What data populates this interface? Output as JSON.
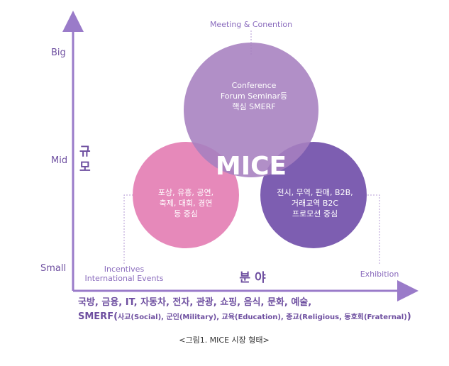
{
  "colors": {
    "axis": "#9a7bc9",
    "text_purple": "#6e4fa0",
    "circle_top": "#a67fbf",
    "circle_left": "#e47fb4",
    "circle_right": "#6f4ca8"
  },
  "y_axis": {
    "ticks": [
      "Big",
      "Mid",
      "Small"
    ],
    "title_line1": "규",
    "title_line2": "모"
  },
  "x_axis": {
    "title": "분 야"
  },
  "callouts": {
    "top": "Meeting & Conention",
    "left_line1": "Incentives",
    "left_line2": "International Events",
    "right": "Exhibition"
  },
  "circles": {
    "top": [
      "Conference",
      "Forum Seminar등",
      "핵심 SMERF"
    ],
    "left": [
      "포상, 유흥, 공연,",
      "축제, 대회, 경연",
      "등 중심"
    ],
    "right": [
      "전시, 무역, 판매, B2B,",
      "거래교역 B2C",
      "프로모션 중심"
    ],
    "center": "MICE"
  },
  "bottom_text": {
    "line1": "국방, 금융, IT, 자동차, 전자, 관광, 쇼핑, 음식, 문화, 예술,",
    "line2_main": "SMERF(",
    "line2_sub": "사교(Social), 군인(Military), 교육(Education), 종교(Religious, 동호회(Fraternal)",
    "line2_close": ")"
  },
  "caption": "<그림1. MICE 시장 형태>"
}
